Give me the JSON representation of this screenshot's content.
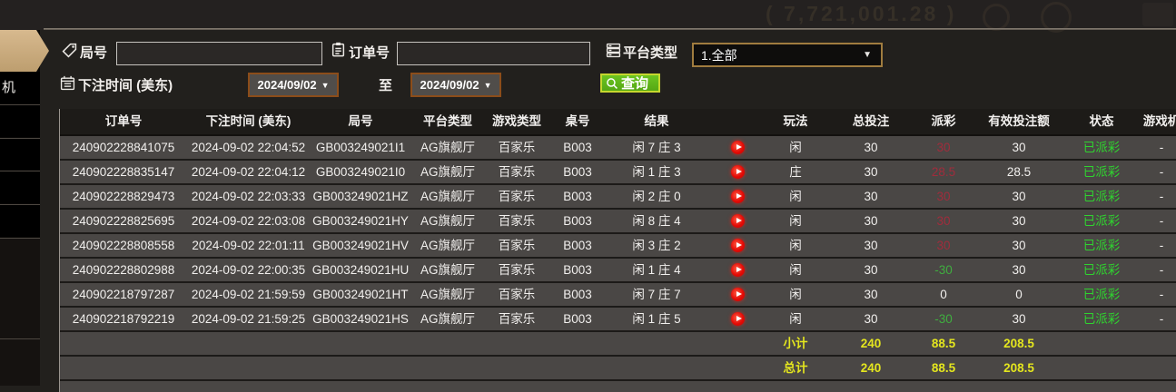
{
  "topbar": {
    "balance_text": "( 7,721,001.28 )"
  },
  "sidebar": {
    "visible_item_label": "机"
  },
  "icons": {
    "caret_down": "▼"
  },
  "filters": {
    "round_label": "局号",
    "round_value": "",
    "order_label": "订单号",
    "order_value": "",
    "platform_label": "平台类型",
    "platform_value": "1.全部",
    "bet_time_label": "下注时间 (美东)",
    "date_from": "2024/09/02",
    "to_label": "至",
    "date_to": "2024/09/02",
    "query_label": "查询"
  },
  "table": {
    "headers": [
      "订单号",
      "下注时间 (美东)",
      "局号",
      "平台类型",
      "游戏类型",
      "桌号",
      "结果",
      "",
      "玩法",
      "总投注",
      "派彩",
      "有效投注额",
      "状态",
      "游戏机"
    ],
    "rows": [
      {
        "order": "240902228841075",
        "time": "2024-09-02 22:04:52",
        "round": "GB003249021I1",
        "platform": "AG旗舰厅",
        "game_type": "百家乐",
        "table_no": "B003",
        "result": "闲 7 庄 3",
        "play": "闲",
        "total_bet": "30",
        "payout": "30",
        "payout_color": "red",
        "valid_bet": "30",
        "status": "已派彩",
        "extra": "-"
      },
      {
        "order": "240902228835147",
        "time": "2024-09-02 22:04:12",
        "round": "GB003249021I0",
        "platform": "AG旗舰厅",
        "game_type": "百家乐",
        "table_no": "B003",
        "result": "闲 1 庄 3",
        "play": "庄",
        "total_bet": "30",
        "payout": "28.5",
        "payout_color": "red",
        "valid_bet": "28.5",
        "status": "已派彩",
        "extra": "-"
      },
      {
        "order": "240902228829473",
        "time": "2024-09-02 22:03:33",
        "round": "GB003249021HZ",
        "platform": "AG旗舰厅",
        "game_type": "百家乐",
        "table_no": "B003",
        "result": "闲 2 庄 0",
        "play": "闲",
        "total_bet": "30",
        "payout": "30",
        "payout_color": "red",
        "valid_bet": "30",
        "status": "已派彩",
        "extra": "-"
      },
      {
        "order": "240902228825695",
        "time": "2024-09-02 22:03:08",
        "round": "GB003249021HY",
        "platform": "AG旗舰厅",
        "game_type": "百家乐",
        "table_no": "B003",
        "result": "闲 8 庄 4",
        "play": "闲",
        "total_bet": "30",
        "payout": "30",
        "payout_color": "red",
        "valid_bet": "30",
        "status": "已派彩",
        "extra": "-"
      },
      {
        "order": "240902228808558",
        "time": "2024-09-02 22:01:11",
        "round": "GB003249021HV",
        "platform": "AG旗舰厅",
        "game_type": "百家乐",
        "table_no": "B003",
        "result": "闲 3 庄 2",
        "play": "闲",
        "total_bet": "30",
        "payout": "30",
        "payout_color": "red",
        "valid_bet": "30",
        "status": "已派彩",
        "extra": "-"
      },
      {
        "order": "240902228802988",
        "time": "2024-09-02 22:00:35",
        "round": "GB003249021HU",
        "platform": "AG旗舰厅",
        "game_type": "百家乐",
        "table_no": "B003",
        "result": "闲 1 庄 4",
        "play": "闲",
        "total_bet": "30",
        "payout": "-30",
        "payout_color": "green",
        "valid_bet": "30",
        "status": "已派彩",
        "extra": "-"
      },
      {
        "order": "240902218797287",
        "time": "2024-09-02 21:59:59",
        "round": "GB003249021HT",
        "platform": "AG旗舰厅",
        "game_type": "百家乐",
        "table_no": "B003",
        "result": "闲 7 庄 7",
        "play": "闲",
        "total_bet": "30",
        "payout": "0",
        "payout_color": "white",
        "valid_bet": "0",
        "status": "已派彩",
        "extra": "-"
      },
      {
        "order": "240902218792219",
        "time": "2024-09-02 21:59:25",
        "round": "GB003249021HS",
        "platform": "AG旗舰厅",
        "game_type": "百家乐",
        "table_no": "B003",
        "result": "闲 1 庄 5",
        "play": "闲",
        "total_bet": "30",
        "payout": "-30",
        "payout_color": "green",
        "valid_bet": "30",
        "status": "已派彩",
        "extra": "-"
      }
    ],
    "subtotal": {
      "label": "小计",
      "total_bet": "240",
      "payout": "88.5",
      "valid_bet": "208.5"
    },
    "grand_total": {
      "label": "总计",
      "total_bet": "240",
      "payout": "88.5",
      "valid_bet": "208.5"
    }
  },
  "colors": {
    "accent_gold": "#c9a366",
    "status_green": "#2fd42f",
    "payout_red": "#a02c3c",
    "payout_green": "#3fae3f",
    "total_yellow": "#e4e61e",
    "button_green": "#61b71c",
    "active_tab_tan": "#c9a97e",
    "date_border": "#8c4d1a",
    "row_gray": "#4a4745"
  }
}
